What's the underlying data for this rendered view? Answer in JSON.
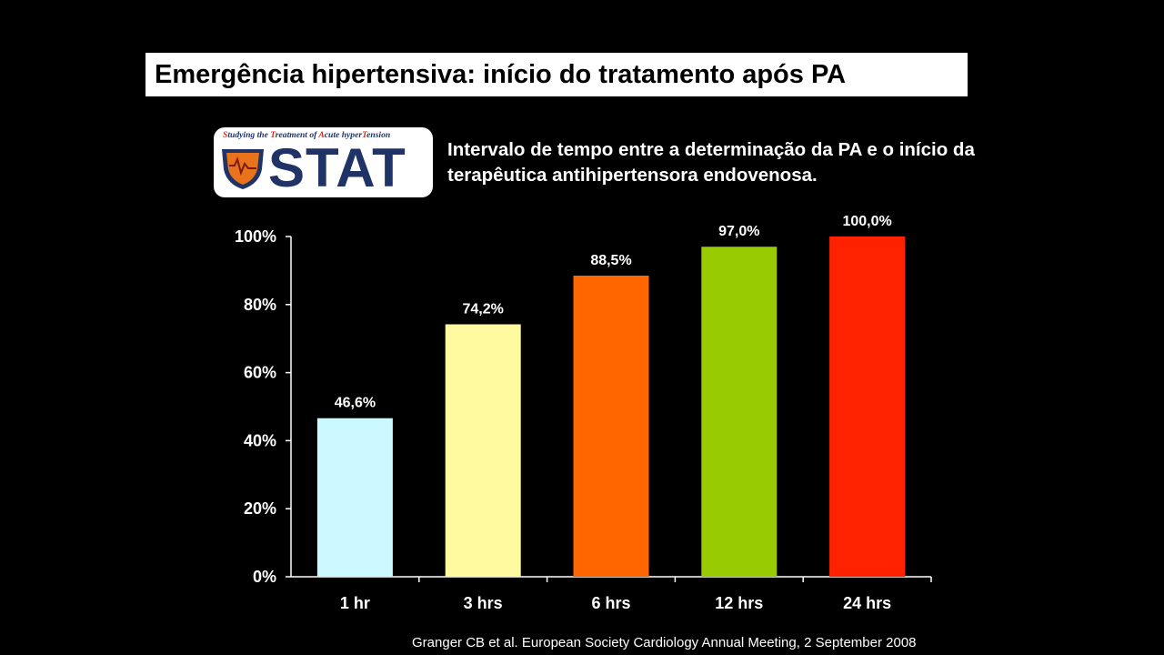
{
  "title": "Emergência hipertensiva: início do tratamento após PA",
  "logo": {
    "tagline_parts": [
      {
        "text": "S",
        "cap": true
      },
      {
        "text": "tudying the ",
        "cap": false
      },
      {
        "text": "T",
        "cap": true
      },
      {
        "text": "reatment of ",
        "cap": false
      },
      {
        "text": "A",
        "cap": true
      },
      {
        "text": "cute hyper",
        "cap": false
      },
      {
        "text": "T",
        "cap": true
      },
      {
        "text": "ension",
        "cap": false
      }
    ],
    "wordmark": "STAT",
    "colors": {
      "navy": "#1f3366",
      "orange": "#e8731a",
      "red": "#c0392b"
    }
  },
  "subtitle": "Intervalo de tempo entre a determinação da PA e o início da terapêutica antihipertensora endovenosa.",
  "chart_data": {
    "type": "bar",
    "categories": [
      "1 hr",
      "3 hrs",
      "6 hrs",
      "12 hrs",
      "24 hrs"
    ],
    "values": [
      46.6,
      74.2,
      88.5,
      97.0,
      100.0
    ],
    "value_labels": [
      "46,6%",
      "74,2%",
      "88,5%",
      "97,0%",
      "100,0%"
    ],
    "colors": [
      "#ccf9ff",
      "#fff9a0",
      "#ff6600",
      "#99cc00",
      "#ff2200"
    ],
    "ylim": [
      0,
      100
    ],
    "yticks": [
      0,
      20,
      40,
      60,
      80,
      100
    ],
    "ytick_labels": [
      "0%",
      "20%",
      "40%",
      "60%",
      "80%",
      "100%"
    ],
    "xlabel": "",
    "ylabel": "",
    "grid": false,
    "axis_color": "#ffffff"
  },
  "source": "Granger  CB et al. European Society Cardiology Annual Meeting, 2 September 2008"
}
